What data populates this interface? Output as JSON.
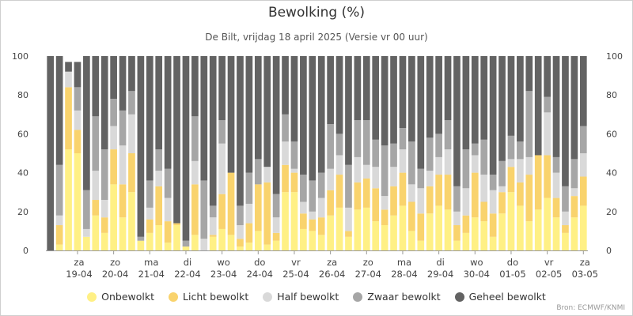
{
  "chart_data": {
    "type": "bar",
    "stacked": true,
    "title": "Bewolking (%)",
    "subtitle": "De Bilt, vrijdag 18 april 2025 (Versie vr 00 uur)",
    "xlabel": "",
    "ylabel": "",
    "ylim": [
      0,
      100
    ],
    "yticks": [
      0,
      20,
      40,
      60,
      80,
      100
    ],
    "grid": false,
    "legend_position": "bottom",
    "x_ticks": [
      {
        "day": "za",
        "date": "19-04"
      },
      {
        "day": "zo",
        "date": "20-04"
      },
      {
        "day": "ma",
        "date": "21-04"
      },
      {
        "day": "di",
        "date": "22-04"
      },
      {
        "day": "wo",
        "date": "23-04"
      },
      {
        "day": "do",
        "date": "24-04"
      },
      {
        "day": "vr",
        "date": "25-04"
      },
      {
        "day": "za",
        "date": "26-04"
      },
      {
        "day": "zo",
        "date": "27-04"
      },
      {
        "day": "ma",
        "date": "28-04"
      },
      {
        "day": "di",
        "date": "29-04"
      },
      {
        "day": "wo",
        "date": "30-04"
      },
      {
        "day": "do",
        "date": "01-05"
      },
      {
        "day": "vr",
        "date": "02-05"
      },
      {
        "day": "za",
        "date": "03-05"
      }
    ],
    "bars_per_day": 4,
    "first_tick_index": 3,
    "series": [
      {
        "name": "Onbewolkt",
        "color": "#fff085",
        "values": [
          0,
          3,
          52,
          50,
          7,
          18,
          9,
          34,
          17,
          30,
          5,
          9,
          13,
          4,
          13,
          2,
          8,
          0,
          7,
          11,
          8,
          2,
          4,
          10,
          3,
          5,
          30,
          30,
          11,
          10,
          8,
          18,
          22,
          7,
          21,
          22,
          15,
          13,
          18,
          23,
          10,
          5,
          19,
          23,
          21,
          5,
          9,
          17,
          15,
          7,
          19,
          30,
          23,
          15,
          21,
          27,
          17,
          9,
          17,
          23
        ]
      },
      {
        "name": "Licht bewolkt",
        "color": "#f9d36d",
        "values": [
          0,
          10,
          32,
          12,
          0,
          8,
          8,
          18,
          17,
          20,
          0,
          7,
          20,
          11,
          1,
          0,
          26,
          0,
          1,
          18,
          32,
          4,
          10,
          24,
          32,
          4,
          14,
          10,
          8,
          6,
          9,
          13,
          17,
          3,
          14,
          15,
          17,
          8,
          15,
          17,
          15,
          14,
          14,
          16,
          18,
          8,
          9,
          23,
          10,
          12,
          11,
          13,
          12,
          24,
          28,
          22,
          10,
          4,
          11,
          15
        ]
      },
      {
        "name": "Half bewolkt",
        "color": "#d9d9d9",
        "values": [
          0,
          5,
          8,
          10,
          4,
          15,
          9,
          12,
          20,
          20,
          0,
          6,
          8,
          12,
          0,
          0,
          12,
          6,
          9,
          26,
          0,
          7,
          10,
          0,
          8,
          8,
          12,
          2,
          6,
          4,
          10,
          11,
          10,
          12,
          13,
          7,
          11,
          7,
          10,
          12,
          9,
          13,
          8,
          9,
          13,
          7,
          14,
          9,
          14,
          12,
          3,
          4,
          12,
          9,
          0,
          22,
          13,
          7,
          4,
          12
        ]
      },
      {
        "name": "Zwaar bewolkt",
        "color": "#a6a6a6",
        "values": [
          0,
          26,
          0,
          12,
          20,
          28,
          26,
          14,
          18,
          12,
          2,
          14,
          11,
          15,
          0,
          3,
          23,
          30,
          6,
          12,
          0,
          10,
          16,
          13,
          0,
          12,
          14,
          14,
          14,
          16,
          13,
          23,
          11,
          22,
          19,
          23,
          14,
          26,
          12,
          11,
          22,
          10,
          17,
          12,
          15,
          13,
          20,
          6,
          18,
          8,
          13,
          12,
          9,
          34,
          0,
          8,
          8,
          13,
          15,
          14
        ]
      },
      {
        "name": "Geheel bewolkt",
        "color": "#636363",
        "values": [
          100,
          56,
          5,
          13,
          69,
          31,
          48,
          22,
          28,
          18,
          93,
          64,
          48,
          58,
          86,
          95,
          31,
          64,
          77,
          33,
          60,
          77,
          60,
          53,
          57,
          71,
          30,
          44,
          61,
          64,
          60,
          35,
          40,
          56,
          33,
          33,
          43,
          46,
          45,
          37,
          44,
          58,
          42,
          40,
          33,
          67,
          48,
          45,
          43,
          61,
          54,
          41,
          44,
          18,
          51,
          21,
          52,
          67,
          53,
          36
        ]
      }
    ],
    "credit": "Bron: ECMWF/KNMI"
  }
}
